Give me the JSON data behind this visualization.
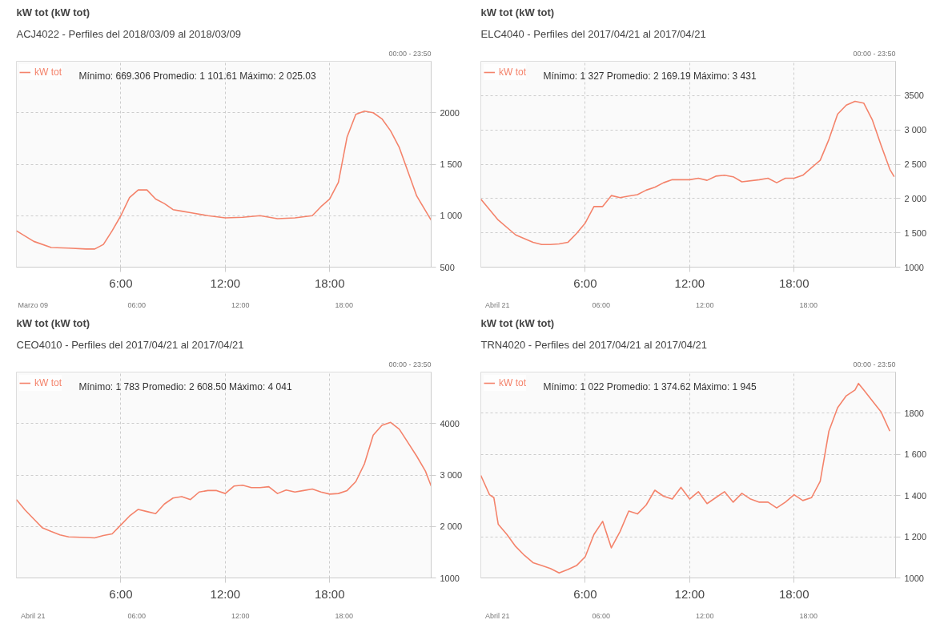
{
  "chart_data": [
    {
      "type": "line",
      "title": "kW tot (kW tot)",
      "subtitle": "ACJ4022 - Perfiles del 2018/03/09 al 2018/03/09",
      "annotations": [
        "Mínimo: 669.306  Promedio: 1 101.61  Máximo: 2 025.03",
        "00:00 - 23:50",
        "Marzo 09",
        "06:00",
        "12:00",
        "18:00"
      ],
      "x": [
        0,
        1,
        2,
        3,
        4,
        4.5,
        5,
        5.5,
        6,
        6.5,
        7,
        7.5,
        8,
        8.5,
        9,
        9.5,
        10,
        11,
        12,
        13,
        14,
        15,
        16,
        17,
        17.5,
        18,
        18.5,
        19,
        19.5,
        20,
        20.5,
        21,
        21.5,
        22,
        22.5,
        23,
        23.83
      ],
      "series": [
        {
          "name": "kW tot",
          "color": "#f4836b",
          "values": [
            853,
            750,
            691,
            685,
            676,
            676,
            721,
            853,
            1000,
            1176,
            1250,
            1250,
            1162,
            1118,
            1059,
            1044,
            1029,
            1000,
            979,
            985,
            1000,
            971,
            979,
            1000,
            1088,
            1162,
            1324,
            1765,
            1985,
            2015,
            2000,
            1941,
            1824,
            1662,
            1426,
            1191,
            956
          ]
        }
      ],
      "xlim": [
        0,
        23.83
      ],
      "ylim": [
        500,
        2500
      ],
      "xticks": [
        {
          "value": 6,
          "label": "6:00"
        },
        {
          "value": 12,
          "label": "12:00"
        },
        {
          "value": 18,
          "label": "18:00"
        }
      ],
      "yticks": [
        500,
        {
          "value": 1000,
          "label": "1 000"
        },
        {
          "value": 1500,
          "label": "1 500"
        },
        2000
      ],
      "grid": true,
      "legend": "top left",
      "line_style": "solid"
    },
    {
      "type": "line",
      "title": "kW tot (kW tot)",
      "subtitle": "ELC4040 - Perfiles del 2017/04/21 al 2017/04/21",
      "annotations": [
        "Mínimo: 1 327  Promedio: 2 169.19  Máximo: 3 431",
        "00:00 - 23:50",
        "Abril 21",
        "06:00",
        "12:00",
        "18:00"
      ],
      "x": [
        0,
        1,
        2,
        3,
        3.5,
        4,
        4.5,
        5,
        5.5,
        6,
        6.5,
        7,
        7.5,
        8,
        8.5,
        9,
        9.5,
        10,
        10.5,
        11,
        12,
        12.5,
        13,
        13.5,
        14,
        14.5,
        15,
        16,
        16.5,
        17,
        17.5,
        18,
        18.5,
        19,
        19.5,
        20,
        20.5,
        21,
        21.5,
        22,
        22.5,
        23,
        23.5,
        23.75
      ],
      "series": [
        {
          "name": "kW tot",
          "color": "#f4836b",
          "values": [
            1991,
            1687,
            1470,
            1361,
            1330,
            1330,
            1339,
            1361,
            1491,
            1643,
            1883,
            1883,
            2043,
            2013,
            2035,
            2057,
            2122,
            2165,
            2230,
            2274,
            2274,
            2296,
            2265,
            2326,
            2339,
            2317,
            2243,
            2274,
            2296,
            2230,
            2296,
            2296,
            2339,
            2448,
            2557,
            2861,
            3230,
            3361,
            3417,
            3391,
            3143,
            2774,
            2426,
            2317
          ]
        }
      ],
      "xlim": [
        0,
        23.83
      ],
      "ylim": [
        1000,
        4000
      ],
      "xticks": [
        {
          "value": 6,
          "label": "6:00"
        },
        {
          "value": 12,
          "label": "12:00"
        },
        {
          "value": 18,
          "label": "18:00"
        }
      ],
      "yticks": [
        1000,
        {
          "value": 1500,
          "label": "1 500"
        },
        {
          "value": 2000,
          "label": "2 000"
        },
        {
          "value": 2500,
          "label": "2 500"
        },
        {
          "value": 3000,
          "label": "3 000"
        },
        3500
      ],
      "grid": true,
      "legend": "top left",
      "line_style": "solid"
    },
    {
      "type": "line",
      "title": "kW tot (kW tot)",
      "subtitle": "CEO4010 - Perfiles del 2017/04/21 al 2017/04/21",
      "annotations": [
        "Mínimo: 1 783  Promedio: 2 608.50  Máximo: 4 041",
        "00:00 - 23:50",
        "Abril 21",
        "06:00",
        "12:00",
        "18:00"
      ],
      "x": [
        0,
        0.5,
        1,
        1.5,
        2,
        2.5,
        3,
        4,
        4.5,
        5,
        5.5,
        6,
        6.5,
        7,
        7.5,
        8,
        8.5,
        9,
        9.5,
        10,
        10.5,
        11,
        11.5,
        12,
        12.5,
        13,
        13.5,
        14,
        14.5,
        15,
        15.5,
        16,
        16.5,
        17,
        17.5,
        18,
        18.5,
        19,
        19.5,
        20,
        20.5,
        21,
        21.5,
        22,
        22.5,
        23,
        23.5,
        23.83
      ],
      "series": [
        {
          "name": "kW tot",
          "color": "#f4836b",
          "values": [
            2523,
            2320,
            2145,
            1971,
            1901,
            1837,
            1797,
            1785,
            1779,
            1826,
            1855,
            2029,
            2203,
            2331,
            2290,
            2250,
            2436,
            2552,
            2581,
            2523,
            2669,
            2698,
            2698,
            2640,
            2785,
            2802,
            2756,
            2756,
            2773,
            2640,
            2709,
            2669,
            2698,
            2727,
            2669,
            2628,
            2640,
            2698,
            2872,
            3221,
            3773,
            3965,
            4023,
            3890,
            3628,
            3366,
            3076,
            2785
          ]
        }
      ],
      "xlim": [
        0,
        23.83
      ],
      "ylim": [
        1000,
        5000
      ],
      "xticks": [
        {
          "value": 6,
          "label": "6:00"
        },
        {
          "value": 12,
          "label": "12:00"
        },
        {
          "value": 18,
          "label": "18:00"
        }
      ],
      "yticks": [
        1000,
        {
          "value": 2000,
          "label": "2 000"
        },
        {
          "value": 3000,
          "label": "3 000"
        },
        4000
      ],
      "grid": true,
      "legend": "top left",
      "line_style": "solid"
    },
    {
      "type": "line",
      "title": "kW tot (kW tot)",
      "subtitle": "TRN4020 - Perfiles del 2017/04/21 al 2017/04/21",
      "annotations": [
        "Mínimo: 1 022  Promedio: 1 374.62  Máximo: 1 945",
        "00:00 - 23:50",
        "Abril 21",
        "06:00",
        "12:00",
        "18:00"
      ],
      "x": [
        0,
        0.5,
        0.75,
        1,
        1.5,
        2,
        2.5,
        3,
        3.5,
        4,
        4.5,
        5,
        5.5,
        6,
        6.5,
        7,
        7.5,
        8,
        8.5,
        9,
        9.5,
        10,
        10.5,
        11,
        11.5,
        12,
        12.5,
        13,
        13.5,
        14,
        14.5,
        15,
        15.5,
        16,
        16.5,
        17,
        17.5,
        18,
        18.5,
        19,
        19.5,
        20,
        20.5,
        21,
        21.5,
        21.7,
        22,
        23,
        23.5
      ],
      "series": [
        {
          "name": "kW tot",
          "color": "#f4836b",
          "values": [
            1498,
            1404,
            1390,
            1261,
            1211,
            1153,
            1110,
            1074,
            1060,
            1046,
            1024,
            1041,
            1060,
            1103,
            1211,
            1275,
            1146,
            1225,
            1325,
            1311,
            1354,
            1426,
            1397,
            1383,
            1440,
            1383,
            1419,
            1361,
            1390,
            1419,
            1368,
            1411,
            1383,
            1368,
            1368,
            1340,
            1368,
            1404,
            1376,
            1390,
            1469,
            1713,
            1827,
            1885,
            1913,
            1945,
            1913,
            1806,
            1713
          ]
        }
      ],
      "xlim": [
        0,
        23.83
      ],
      "ylim": [
        1000,
        2000
      ],
      "xticks": [
        {
          "value": 6,
          "label": "6:00"
        },
        {
          "value": 12,
          "label": "12:00"
        },
        {
          "value": 18,
          "label": "18:00"
        }
      ],
      "yticks": [
        1000,
        {
          "value": 1200,
          "label": "1 200"
        },
        {
          "value": 1400,
          "label": "1 400"
        },
        {
          "value": 1600,
          "label": "1 600"
        },
        1800
      ],
      "grid": true,
      "legend": "top left",
      "line_style": "solid"
    }
  ]
}
